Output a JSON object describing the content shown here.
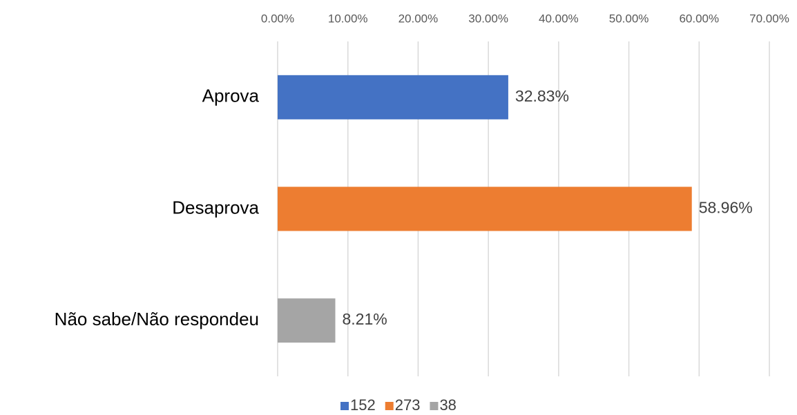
{
  "chart_data": {
    "type": "bar",
    "orientation": "horizontal",
    "categories": [
      "Aprova",
      "Desaprova",
      "Não sabe/Não respondeu"
    ],
    "series": [
      {
        "name": "152",
        "color": "#4472c4",
        "values": [
          32.83,
          null,
          null
        ],
        "value_labels": [
          "32.83%",
          null,
          null
        ]
      },
      {
        "name": "273",
        "color": "#ed7d31",
        "values": [
          null,
          58.96,
          null
        ],
        "value_labels": [
          null,
          "58.96%",
          null
        ]
      },
      {
        "name": "38",
        "color": "#a5a5a5",
        "values": [
          null,
          null,
          8.21
        ],
        "value_labels": [
          null,
          null,
          "8.21%"
        ]
      }
    ],
    "xlim": [
      0,
      70
    ],
    "xticks": [
      {
        "value": 0,
        "label": "0.00%"
      },
      {
        "value": 10,
        "label": "10.00%"
      },
      {
        "value": 20,
        "label": "20.00%"
      },
      {
        "value": 30,
        "label": "30.00%"
      },
      {
        "value": 40,
        "label": "40.00%"
      },
      {
        "value": 50,
        "label": "50.00%"
      },
      {
        "value": 60,
        "label": "60.00%"
      },
      {
        "value": 70,
        "label": "70.00%"
      }
    ],
    "grid": true,
    "legend": "bottom"
  }
}
